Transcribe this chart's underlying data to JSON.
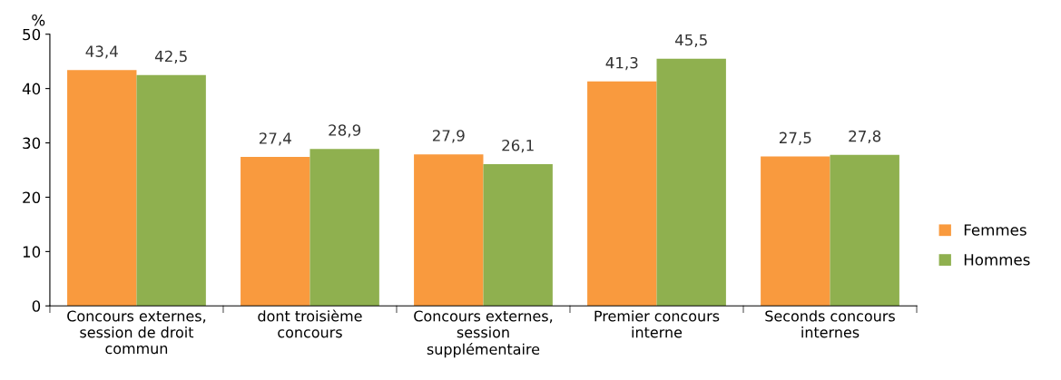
{
  "chart_data": {
    "type": "bar",
    "ylabel": "%",
    "categories": [
      "Concours externes,\nsession de droit\ncommun",
      "dont troisième\nconcours",
      "Concours externes,\nsession\nsupplémentaire",
      "Premier concours\ninterne",
      "Seconds concours\ninternes"
    ],
    "series": [
      {
        "name": "Femmes",
        "color": "#f99a3e",
        "values": [
          43.4,
          27.4,
          27.9,
          41.3,
          27.5
        ],
        "value_labels": [
          "43,4",
          "27,4",
          "27,9",
          "41,3",
          "27,5"
        ]
      },
      {
        "name": "Hommes",
        "color": "#8fb04f",
        "values": [
          42.5,
          28.9,
          26.1,
          45.5,
          27.8
        ],
        "value_labels": [
          "42,5",
          "28,9",
          "26,1",
          "45,5",
          "27,8"
        ]
      }
    ],
    "ylim": [
      0,
      50
    ],
    "yticks": [
      0,
      10,
      20,
      30,
      40,
      50
    ],
    "grid": false,
    "legend": "right"
  }
}
